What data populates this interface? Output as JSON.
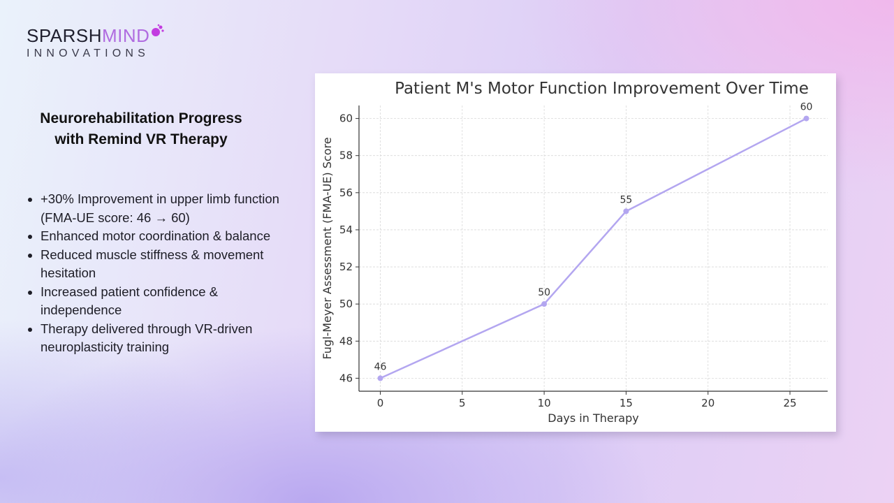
{
  "logo": {
    "line1_main": "SPARSH",
    "line1_accent": "MIND",
    "line2": "INNOVATIONS",
    "accent_color": "#b06ce0"
  },
  "heading": {
    "line1": "Neurorehabilitation Progress",
    "line2": "with Remind VR Therapy"
  },
  "bullets": [
    "+30% Improvement in upper limb function (FMA-UE score: 46 → 60)",
    "Enhanced motor coordination & balance",
    "Reduced muscle stiffness & movement hesitation",
    "Increased patient confidence & independence",
    "Therapy delivered through VR-driven neuroplasticity training"
  ],
  "chart_data": {
    "type": "line",
    "title": "Patient M's Motor Function Improvement Over Time",
    "xlabel": "Days in Therapy",
    "ylabel": "Fugl-Meyer Assessment (FMA-UE) Score",
    "x": [
      0,
      10,
      15,
      26
    ],
    "y": [
      46,
      50,
      55,
      60
    ],
    "data_labels": [
      "46",
      "50",
      "55",
      "60"
    ],
    "xticks": [
      0,
      5,
      10,
      15,
      20,
      25
    ],
    "yticks": [
      46,
      48,
      50,
      52,
      54,
      56,
      58,
      60
    ],
    "xlim": [
      -1.3,
      27.3
    ],
    "ylim": [
      45.3,
      60.7
    ],
    "grid": true,
    "line_color": "#b3a6f0"
  }
}
